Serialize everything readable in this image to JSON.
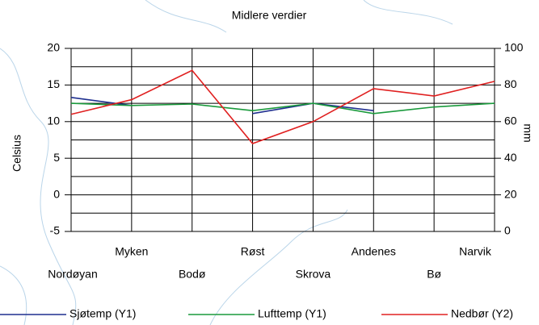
{
  "chart_data": {
    "type": "line",
    "title": "Midlere verdier",
    "y_label": "Celsius",
    "y2_label": "mm",
    "categories": [
      "Nordøyan",
      "Myken",
      "Bodø",
      "Røst",
      "Skrova",
      "Andenes",
      "Bø",
      "Narvik"
    ],
    "series": [
      {
        "name": "Sjøtemp (Y1)",
        "color": "#1f2f8f",
        "values": [
          13.3,
          12.2,
          null,
          11.1,
          12.5,
          11.5,
          null,
          null
        ]
      },
      {
        "name": "Lufttemp (Y1)",
        "color": "#1a9a3c",
        "values": [
          12.5,
          12.2,
          12.4,
          11.5,
          12.5,
          11.1,
          12.0,
          12.5
        ]
      },
      {
        "name": "Nedbør (Y2)",
        "color": "#e02020",
        "axis": "y2",
        "values": [
          64,
          72,
          88,
          48,
          60,
          78,
          74,
          82
        ]
      }
    ],
    "ylim": [
      -5,
      20
    ],
    "yticks": [
      -5,
      0,
      5,
      10,
      15,
      20
    ],
    "minor_yticks": [
      -2.5,
      2.5,
      7.5,
      12.5,
      17.5
    ],
    "y2lim": [
      0,
      100
    ],
    "y2ticks": [
      0,
      20,
      40,
      60,
      80,
      100
    ],
    "grid": true
  }
}
